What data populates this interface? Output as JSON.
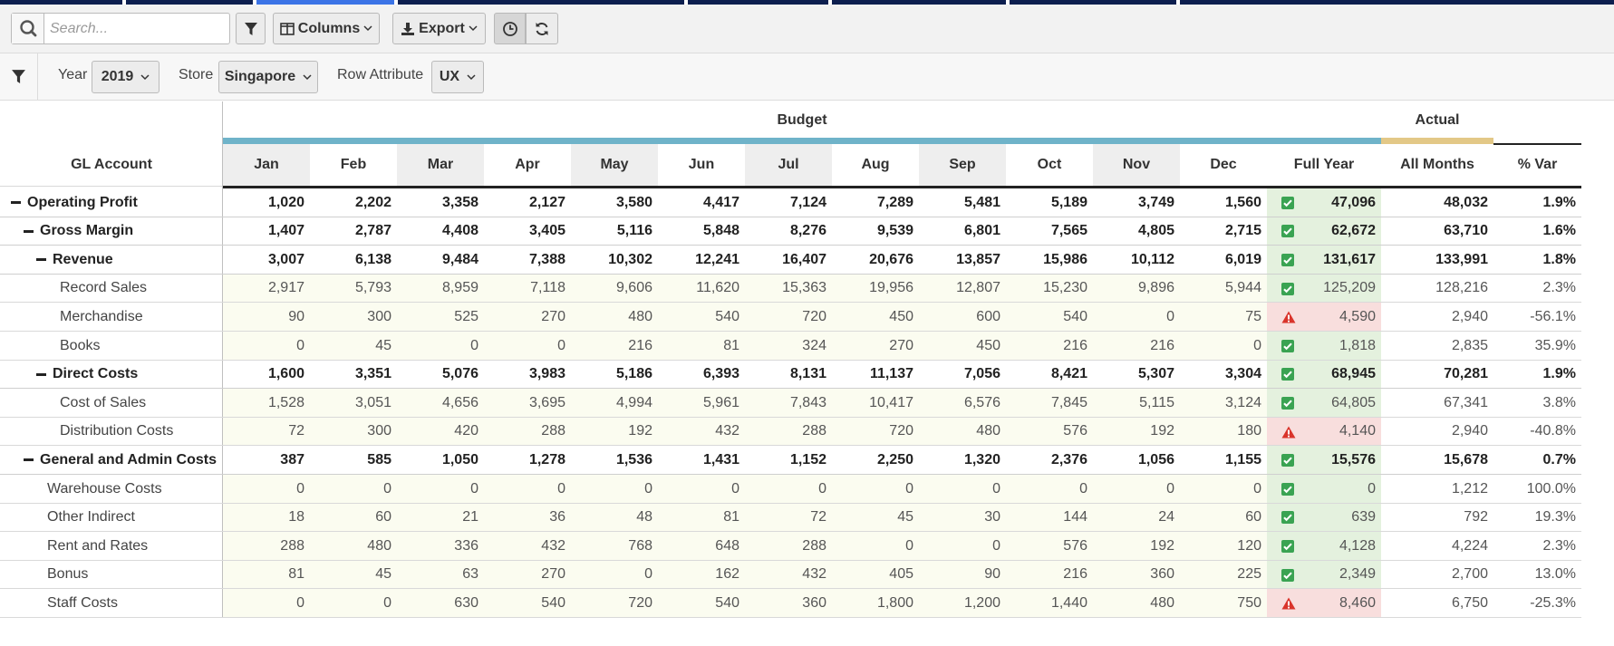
{
  "toolbar": {
    "search_placeholder": "Search...",
    "columns_label": "Columns",
    "export_label": "Export"
  },
  "filters": {
    "year_label": "Year",
    "year_value": "2019",
    "store_label": "Store",
    "store_value": "Singapore",
    "row_attribute_label": "Row Attribute",
    "row_attribute_value": "UX"
  },
  "table": {
    "group_budget": "Budget",
    "group_actual": "Actual",
    "gl_header": "GL Account",
    "columns": [
      "Jan",
      "Feb",
      "Mar",
      "Apr",
      "May",
      "Jun",
      "Jul",
      "Aug",
      "Sep",
      "Oct",
      "Nov",
      "Dec",
      "Full Year",
      "All Months",
      "% Var"
    ],
    "colors": {
      "budget_bar": "#6fb3c9",
      "actual_bar": "#e3c887",
      "ok_fill": "#e4f1de",
      "warn_fill": "#f8dedd",
      "row_tint": "#fbfcf0",
      "check_icon": "#3aa352",
      "warning_icon": "#d9342b"
    },
    "rows": [
      {
        "label": "Operating Profit",
        "level": 0,
        "bold": true,
        "toggle": true,
        "months": [
          "1,020",
          "2,202",
          "3,358",
          "2,127",
          "3,580",
          "4,417",
          "7,124",
          "7,289",
          "5,481",
          "5,189",
          "3,749",
          "1,560"
        ],
        "full_year": "47,096",
        "actual": "48,032",
        "var": "1.9%",
        "status": "check-icon"
      },
      {
        "label": "Gross Margin",
        "level": 1,
        "bold": true,
        "toggle": true,
        "months": [
          "1,407",
          "2,787",
          "4,408",
          "3,405",
          "5,116",
          "5,848",
          "8,276",
          "9,539",
          "6,801",
          "7,565",
          "4,805",
          "2,715"
        ],
        "full_year": "62,672",
        "actual": "63,710",
        "var": "1.6%",
        "status": "check-icon"
      },
      {
        "label": "Revenue",
        "level": 2,
        "bold": true,
        "toggle": true,
        "months": [
          "3,007",
          "6,138",
          "9,484",
          "7,388",
          "10,302",
          "12,241",
          "16,407",
          "20,676",
          "13,857",
          "15,986",
          "10,112",
          "6,019"
        ],
        "full_year": "131,617",
        "actual": "133,991",
        "var": "1.8%",
        "status": "check-icon"
      },
      {
        "label": "Record Sales",
        "level": 3,
        "bold": false,
        "toggle": false,
        "months": [
          "2,917",
          "5,793",
          "8,959",
          "7,118",
          "9,606",
          "11,620",
          "15,363",
          "19,956",
          "12,807",
          "15,230",
          "9,896",
          "5,944"
        ],
        "full_year": "125,209",
        "actual": "128,216",
        "var": "2.3%",
        "status": "check-icon"
      },
      {
        "label": "Merchandise",
        "level": 3,
        "bold": false,
        "toggle": false,
        "months": [
          "90",
          "300",
          "525",
          "270",
          "480",
          "540",
          "720",
          "450",
          "600",
          "540",
          "0",
          "75"
        ],
        "full_year": "4,590",
        "actual": "2,940",
        "var": "-56.1%",
        "status": "warning-icon"
      },
      {
        "label": "Books",
        "level": 3,
        "bold": false,
        "toggle": false,
        "months": [
          "0",
          "45",
          "0",
          "0",
          "216",
          "81",
          "324",
          "270",
          "450",
          "216",
          "216",
          "0"
        ],
        "full_year": "1,818",
        "actual": "2,835",
        "var": "35.9%",
        "status": "check-icon"
      },
      {
        "label": "Direct Costs",
        "level": 2,
        "bold": true,
        "toggle": true,
        "months": [
          "1,600",
          "3,351",
          "5,076",
          "3,983",
          "5,186",
          "6,393",
          "8,131",
          "11,137",
          "7,056",
          "8,421",
          "5,307",
          "3,304"
        ],
        "full_year": "68,945",
        "actual": "70,281",
        "var": "1.9%",
        "status": "check-icon"
      },
      {
        "label": "Cost of Sales",
        "level": 3,
        "bold": false,
        "toggle": false,
        "months": [
          "1,528",
          "3,051",
          "4,656",
          "3,695",
          "4,994",
          "5,961",
          "7,843",
          "10,417",
          "6,576",
          "7,845",
          "5,115",
          "3,124"
        ],
        "full_year": "64,805",
        "actual": "67,341",
        "var": "3.8%",
        "status": "check-icon"
      },
      {
        "label": "Distribution Costs",
        "level": 3,
        "bold": false,
        "toggle": false,
        "months": [
          "72",
          "300",
          "420",
          "288",
          "192",
          "432",
          "288",
          "720",
          "480",
          "576",
          "192",
          "180"
        ],
        "full_year": "4,140",
        "actual": "2,940",
        "var": "-40.8%",
        "status": "warning-icon"
      },
      {
        "label": "General and Admin Costs",
        "level": 1,
        "bold": true,
        "toggle": true,
        "months": [
          "387",
          "585",
          "1,050",
          "1,278",
          "1,536",
          "1,431",
          "1,152",
          "2,250",
          "1,320",
          "2,376",
          "1,056",
          "1,155"
        ],
        "full_year": "15,576",
        "actual": "15,678",
        "var": "0.7%",
        "status": "check-icon"
      },
      {
        "label": "Warehouse Costs",
        "level": 2,
        "bold": false,
        "toggle": false,
        "months": [
          "0",
          "0",
          "0",
          "0",
          "0",
          "0",
          "0",
          "0",
          "0",
          "0",
          "0",
          "0"
        ],
        "full_year": "0",
        "actual": "1,212",
        "var": "100.0%",
        "status": "check-icon"
      },
      {
        "label": "Other Indirect",
        "level": 2,
        "bold": false,
        "toggle": false,
        "months": [
          "18",
          "60",
          "21",
          "36",
          "48",
          "81",
          "72",
          "45",
          "30",
          "144",
          "24",
          "60"
        ],
        "full_year": "639",
        "actual": "792",
        "var": "19.3%",
        "status": "check-icon"
      },
      {
        "label": "Rent and Rates",
        "level": 2,
        "bold": false,
        "toggle": false,
        "months": [
          "288",
          "480",
          "336",
          "432",
          "768",
          "648",
          "288",
          "0",
          "0",
          "576",
          "192",
          "120"
        ],
        "full_year": "4,128",
        "actual": "4,224",
        "var": "2.3%",
        "status": "check-icon"
      },
      {
        "label": "Bonus",
        "level": 2,
        "bold": false,
        "toggle": false,
        "months": [
          "81",
          "45",
          "63",
          "270",
          "0",
          "162",
          "432",
          "405",
          "90",
          "216",
          "360",
          "225"
        ],
        "full_year": "2,349",
        "actual": "2,700",
        "var": "13.0%",
        "status": "check-icon"
      },
      {
        "label": "Staff Costs",
        "level": 2,
        "bold": false,
        "toggle": false,
        "months": [
          "0",
          "0",
          "630",
          "540",
          "720",
          "540",
          "360",
          "1,800",
          "1,200",
          "1,440",
          "480",
          "750"
        ],
        "full_year": "8,460",
        "actual": "6,750",
        "var": "-25.3%",
        "status": "warning-icon"
      }
    ]
  }
}
